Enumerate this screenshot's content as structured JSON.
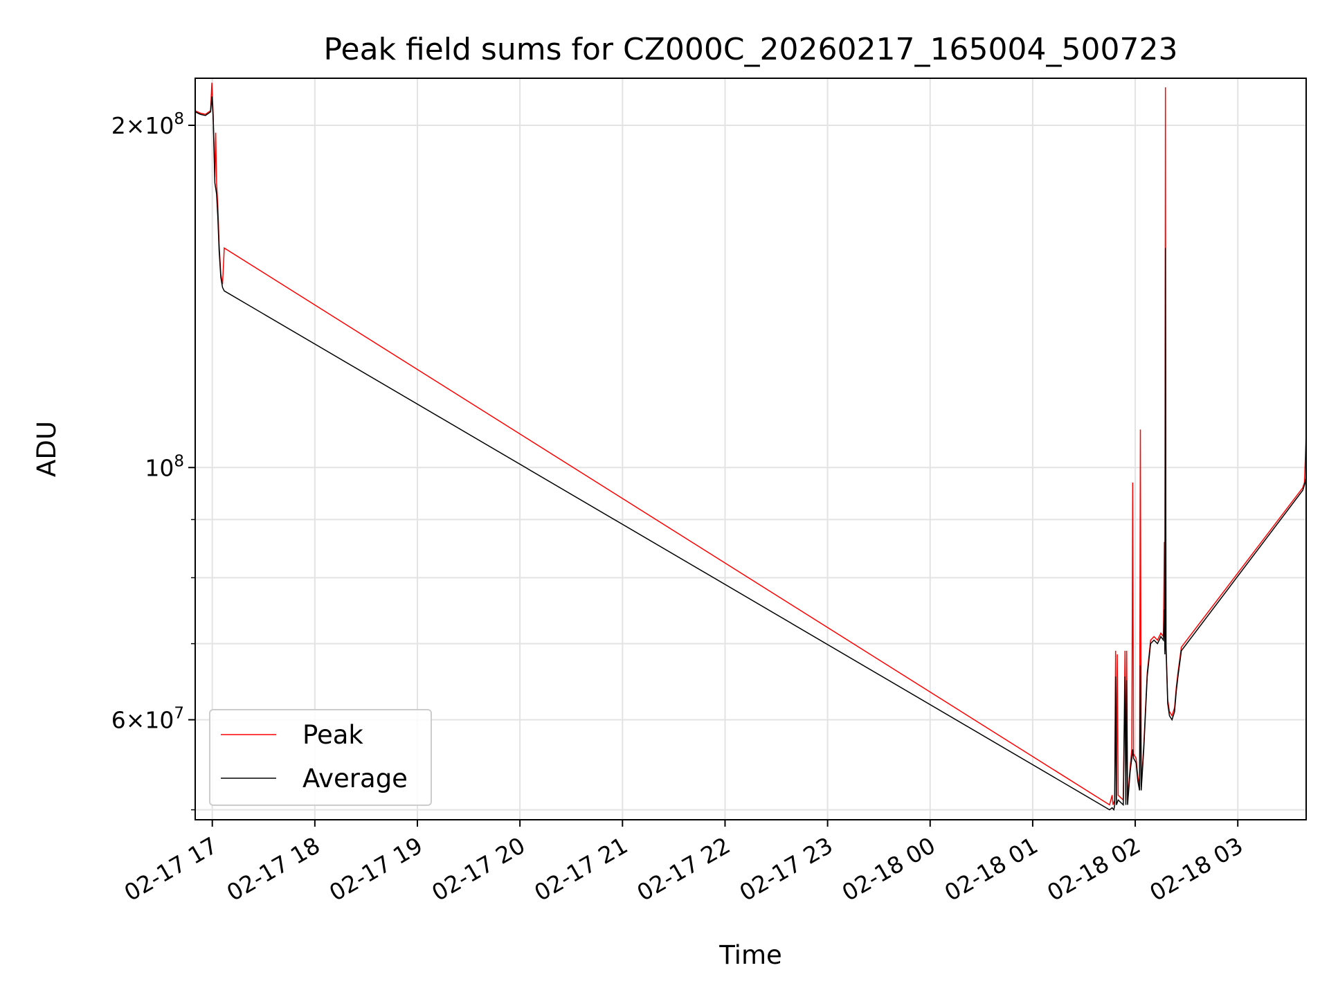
{
  "chart_data": {
    "type": "line",
    "title": "Peak field sums for CZ000C_20260217_165004_500723",
    "xlabel": "Time",
    "ylabel": "ADU",
    "yscale": "log",
    "grid": true,
    "legend_position": "lower-left",
    "xlim": [
      "2026-02-17 16:50",
      "2026-02-18 03:40"
    ],
    "ylim": [
      49000000,
      220000000
    ],
    "x_ticks": [
      {
        "value": "2026-02-17 17:00",
        "label": "02-17 17"
      },
      {
        "value": "2026-02-17 18:00",
        "label": "02-17 18"
      },
      {
        "value": "2026-02-17 19:00",
        "label": "02-17 19"
      },
      {
        "value": "2026-02-17 20:00",
        "label": "02-17 20"
      },
      {
        "value": "2026-02-17 21:00",
        "label": "02-17 21"
      },
      {
        "value": "2026-02-17 22:00",
        "label": "02-17 22"
      },
      {
        "value": "2026-02-17 23:00",
        "label": "02-17 23"
      },
      {
        "value": "2026-02-18 00:00",
        "label": "02-18 00"
      },
      {
        "value": "2026-02-18 01:00",
        "label": "02-18 01"
      },
      {
        "value": "2026-02-18 02:00",
        "label": "02-18 02"
      },
      {
        "value": "2026-02-18 03:00",
        "label": "02-18 03"
      }
    ],
    "y_major_ticks": [
      {
        "value": 60000000,
        "mantissa": "6",
        "exponent": "7"
      },
      {
        "value": 100000000,
        "mantissa": "",
        "exponent": "8"
      },
      {
        "value": 200000000,
        "mantissa": "2",
        "exponent": "8"
      }
    ],
    "y_minor_ticks": [
      50000000,
      70000000,
      80000000,
      90000000
    ],
    "series": [
      {
        "name": "Peak",
        "color": "#ff0000",
        "points": [
          [
            "2026-02-17 16:50:00",
            206000000
          ],
          [
            "2026-02-17 16:53:00",
            205000000
          ],
          [
            "2026-02-17 16:56:00",
            204500000
          ],
          [
            "2026-02-17 16:59:00",
            206000000
          ],
          [
            "2026-02-17 16:59:45",
            218000000
          ],
          [
            "2026-02-17 17:00:30",
            205000000
          ],
          [
            "2026-02-17 17:01:30",
            180000000
          ],
          [
            "2026-02-17 17:02:00",
            197000000
          ],
          [
            "2026-02-17 17:02:30",
            178000000
          ],
          [
            "2026-02-17 17:03:15",
            170000000
          ],
          [
            "2026-02-17 17:04:00",
            157000000
          ],
          [
            "2026-02-17 17:05:00",
            148000000
          ],
          [
            "2026-02-17 17:06:00",
            145000000
          ],
          [
            "2026-02-17 17:07:00",
            156000000
          ],
          [
            "2026-02-18 01:45:00",
            50500000
          ],
          [
            "2026-02-18 01:46:30",
            51500000
          ],
          [
            "2026-02-18 01:47:00",
            50500000
          ],
          [
            "2026-02-18 01:48:00",
            51000000
          ],
          [
            "2026-02-18 01:48:30",
            69000000
          ],
          [
            "2026-02-18 01:49:00",
            51000000
          ],
          [
            "2026-02-18 01:49:30",
            68500000
          ],
          [
            "2026-02-18 01:50:00",
            51500000
          ],
          [
            "2026-02-18 01:53:00",
            51000000
          ],
          [
            "2026-02-18 01:54:00",
            69000000
          ],
          [
            "2026-02-18 01:54:30",
            51000000
          ],
          [
            "2026-02-18 01:55:00",
            69000000
          ],
          [
            "2026-02-18 01:55:30",
            51000000
          ],
          [
            "2026-02-18 01:57:00",
            54500000
          ],
          [
            "2026-02-18 01:58:00",
            56500000
          ],
          [
            "2026-02-18 01:58:30",
            97000000
          ],
          [
            "2026-02-18 01:59:00",
            56000000
          ],
          [
            "2026-02-18 02:00:30",
            55500000
          ],
          [
            "2026-02-18 02:01:30",
            53500000
          ],
          [
            "2026-02-18 02:02:30",
            52500000
          ],
          [
            "2026-02-18 02:03:00",
            108000000
          ],
          [
            "2026-02-18 02:03:30",
            52500000
          ],
          [
            "2026-02-18 02:05:00",
            57000000
          ],
          [
            "2026-02-18 02:07:00",
            66000000
          ],
          [
            "2026-02-18 02:09:00",
            70500000
          ],
          [
            "2026-02-18 02:11:00",
            71000000
          ],
          [
            "2026-02-18 02:13:00",
            70500000
          ],
          [
            "2026-02-18 02:15:00",
            71500000
          ],
          [
            "2026-02-18 02:16:30",
            71000000
          ],
          [
            "2026-02-18 02:17:00",
            86000000
          ],
          [
            "2026-02-18 02:17:20",
            69000000
          ],
          [
            "2026-02-18 02:17:40",
            216000000
          ],
          [
            "2026-02-18 02:18:00",
            70000000
          ],
          [
            "2026-02-18 02:19:00",
            62500000
          ],
          [
            "2026-02-18 02:20:00",
            61000000
          ],
          [
            "2026-02-18 02:21:30",
            60500000
          ],
          [
            "2026-02-18 02:23:00",
            61500000
          ],
          [
            "2026-02-18 02:24:00",
            64000000
          ],
          [
            "2026-02-18 02:25:00",
            66000000
          ],
          [
            "2026-02-18 02:27:00",
            69500000
          ],
          [
            "2026-02-18 03:38:00",
            96000000
          ],
          [
            "2026-02-18 03:39:00",
            97000000
          ],
          [
            "2026-02-18 03:40:00",
            107000000
          ]
        ]
      },
      {
        "name": "Average",
        "color": "#000000",
        "points": [
          [
            "2026-02-17 16:50:00",
            205500000
          ],
          [
            "2026-02-17 16:53:00",
            204500000
          ],
          [
            "2026-02-17 16:56:00",
            204000000
          ],
          [
            "2026-02-17 16:59:00",
            205500000
          ],
          [
            "2026-02-17 16:59:45",
            212000000
          ],
          [
            "2026-02-17 17:00:30",
            204000000
          ],
          [
            "2026-02-17 17:01:30",
            178000000
          ],
          [
            "2026-02-17 17:02:30",
            174000000
          ],
          [
            "2026-02-17 17:03:15",
            166000000
          ],
          [
            "2026-02-17 17:04:00",
            155000000
          ],
          [
            "2026-02-17 17:05:00",
            147000000
          ],
          [
            "2026-02-17 17:06:00",
            144000000
          ],
          [
            "2026-02-17 17:07:00",
            143000000
          ],
          [
            "2026-02-18 01:45:00",
            50000000
          ],
          [
            "2026-02-18 01:46:30",
            50200000
          ],
          [
            "2026-02-18 01:47:30",
            50000000
          ],
          [
            "2026-02-18 01:48:00",
            50500000
          ],
          [
            "2026-02-18 01:48:30",
            65500000
          ],
          [
            "2026-02-18 01:49:00",
            50500000
          ],
          [
            "2026-02-18 01:50:00",
            51000000
          ],
          [
            "2026-02-18 01:53:00",
            50500000
          ],
          [
            "2026-02-18 01:54:00",
            65500000
          ],
          [
            "2026-02-18 01:54:30",
            50500000
          ],
          [
            "2026-02-18 01:55:00",
            65000000
          ],
          [
            "2026-02-18 01:55:30",
            50500000
          ],
          [
            "2026-02-18 01:57:00",
            54000000
          ],
          [
            "2026-02-18 01:58:00",
            55500000
          ],
          [
            "2026-02-18 01:58:30",
            56500000
          ],
          [
            "2026-02-18 01:59:00",
            55500000
          ],
          [
            "2026-02-18 02:00:30",
            55000000
          ],
          [
            "2026-02-18 02:01:30",
            53000000
          ],
          [
            "2026-02-18 02:02:30",
            52000000
          ],
          [
            "2026-02-18 02:03:00",
            67000000
          ],
          [
            "2026-02-18 02:03:30",
            52000000
          ],
          [
            "2026-02-18 02:05:00",
            56500000
          ],
          [
            "2026-02-18 02:07:00",
            65500000
          ],
          [
            "2026-02-18 02:09:00",
            70000000
          ],
          [
            "2026-02-18 02:11:00",
            70500000
          ],
          [
            "2026-02-18 02:13:00",
            70000000
          ],
          [
            "2026-02-18 02:15:00",
            71000000
          ],
          [
            "2026-02-18 02:16:30",
            70500000
          ],
          [
            "2026-02-18 02:17:00",
            75000000
          ],
          [
            "2026-02-18 02:17:20",
            68500000
          ],
          [
            "2026-02-18 02:17:40",
            156000000
          ],
          [
            "2026-02-18 02:18:00",
            69500000
          ],
          [
            "2026-02-18 02:19:00",
            62000000
          ],
          [
            "2026-02-18 02:20:00",
            60500000
          ],
          [
            "2026-02-18 02:21:30",
            60000000
          ],
          [
            "2026-02-18 02:23:00",
            61000000
          ],
          [
            "2026-02-18 02:24:00",
            63500000
          ],
          [
            "2026-02-18 02:25:00",
            65500000
          ],
          [
            "2026-02-18 02:27:00",
            69000000
          ],
          [
            "2026-02-18 03:38:00",
            95500000
          ],
          [
            "2026-02-18 03:39:00",
            96500000
          ],
          [
            "2026-02-18 03:40:00",
            98000000
          ]
        ]
      }
    ]
  }
}
